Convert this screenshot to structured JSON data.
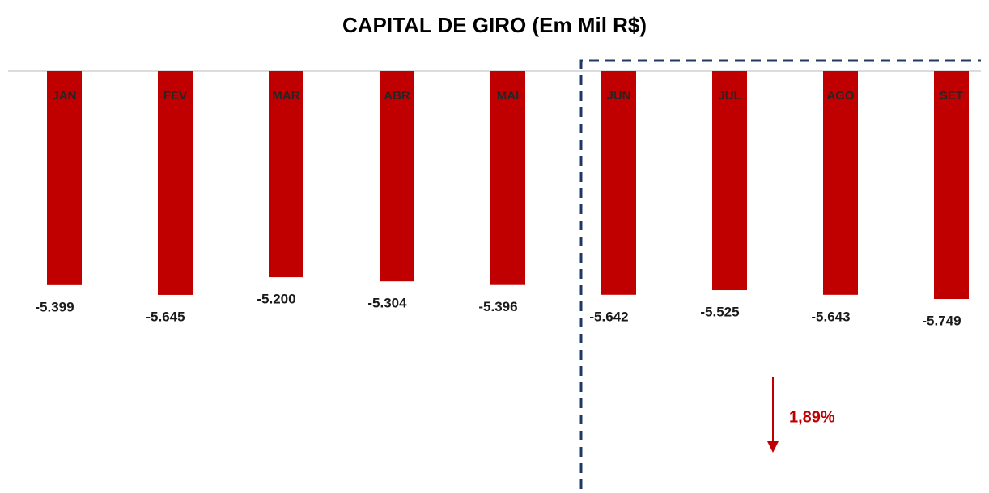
{
  "chart_data": {
    "type": "bar",
    "title": "CAPITAL DE GIRO (Em Mil R$)",
    "categories": [
      "JAN",
      "FEV",
      "MAR",
      "ABR",
      "MAI",
      "JUN",
      "JUL",
      "AGO",
      "SET"
    ],
    "values": [
      -5399,
      -5645,
      -5200,
      -5304,
      -5396,
      -5642,
      -5525,
      -5643,
      -5749
    ],
    "value_labels": [
      "-5.399",
      "-5.645",
      "-5.200",
      "-5.304",
      "-5.396",
      "-5.642",
      "-5.525",
      "-5.643",
      "-5.749"
    ],
    "color": "#c00000",
    "ylim": [
      -10600,
      0
    ],
    "annotation": "1,89%"
  }
}
